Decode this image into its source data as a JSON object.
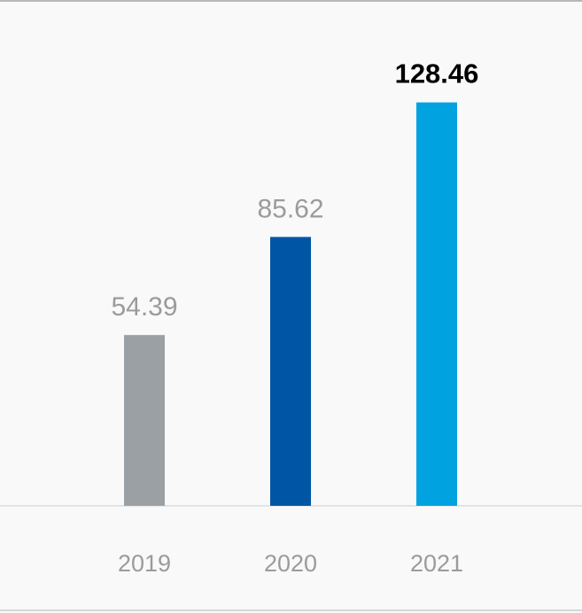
{
  "chart_data": {
    "type": "bar",
    "categories": [
      "2019",
      "2020",
      "2021"
    ],
    "values": [
      54.39,
      85.62,
      128.46
    ],
    "value_labels": [
      "54.39",
      "85.62",
      "128.46"
    ],
    "highlight_index": 2,
    "colors": [
      "#9aa0a3",
      "#0055a5",
      "#00a3e0"
    ],
    "label_color": "#9b9b9b",
    "highlight_label_color": "#000000",
    "axis_color": "#dcdcdc",
    "title": "",
    "xlabel": "",
    "ylabel": "",
    "grid": false,
    "legend": "none"
  }
}
